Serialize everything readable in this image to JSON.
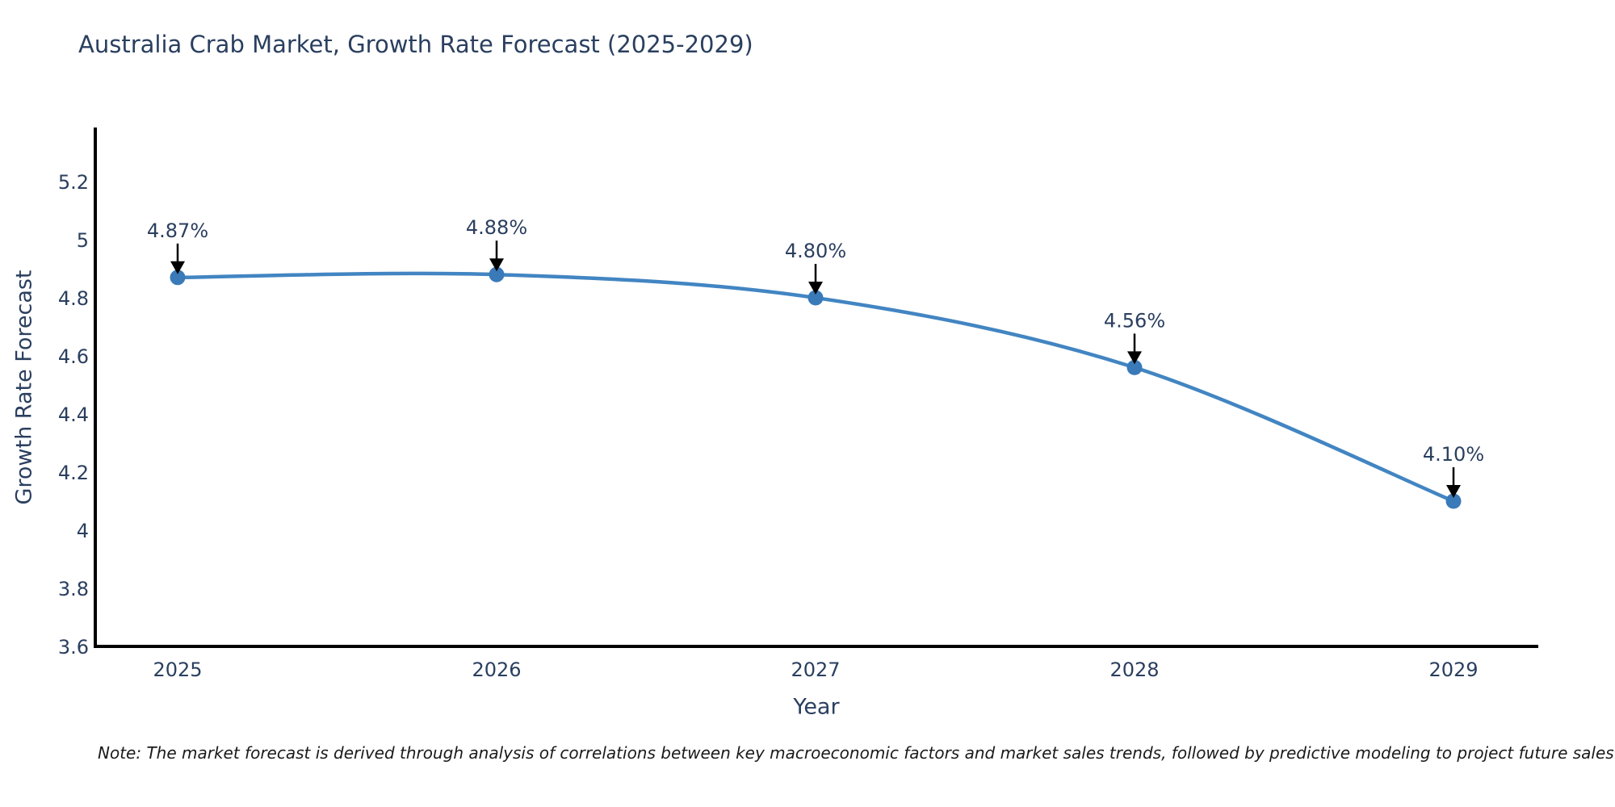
{
  "page": {
    "note": "Note: The market forecast is derived through analysis of correlations between key macroeconomic factors and market sales trends, followed by predictive modeling to project future sales."
  },
  "chart_data": {
    "type": "line",
    "title": "Australia Crab Market, Growth Rate Forecast (2025-2029)",
    "xlabel": "Year",
    "ylabel": "Growth Rate Forecast",
    "x": [
      2025,
      2026,
      2027,
      2028,
      2029
    ],
    "xtick_labels": [
      "2025",
      "2026",
      "2027",
      "2028",
      "2029"
    ],
    "series": [
      {
        "name": "Growth Rate Forecast",
        "values": [
          4.87,
          4.88,
          4.8,
          4.56,
          4.1
        ]
      }
    ],
    "data_labels": [
      "4.87%",
      "4.88%",
      "4.80%",
      "4.56%",
      "4.10%"
    ],
    "yticks": [
      3.6,
      3.8,
      4,
      4.2,
      4.4,
      4.6,
      4.8,
      5,
      5.2
    ],
    "ytick_labels": [
      "3.6",
      "3.8",
      "4",
      "4.2",
      "4.4",
      "4.6",
      "4.8",
      "5",
      "5.2"
    ],
    "ylim": [
      3.6,
      5.39
    ],
    "xlim_years": [
      2025,
      2029
    ],
    "grid": false,
    "legend": "none",
    "line_shape": "spline",
    "colors": {
      "line": "#4285c2",
      "marker": "#3a7ab8",
      "text": "#2a3f5f",
      "axis": "#000000",
      "arrow": "#000000",
      "note_text": "#1a1a1a",
      "background": "#ffffff"
    }
  }
}
